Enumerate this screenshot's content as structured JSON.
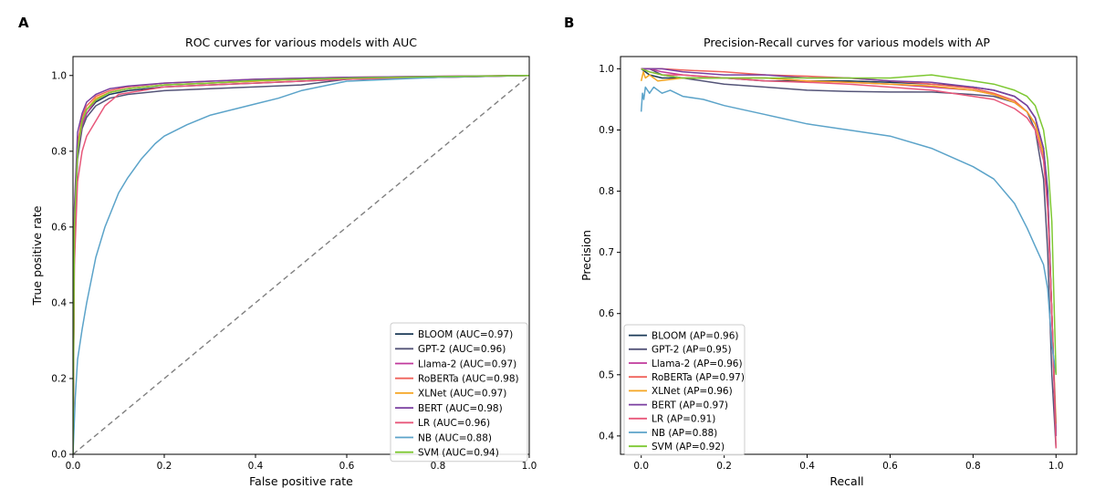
{
  "figure": {
    "panel_a_letter": "A",
    "panel_b_letter": "B"
  },
  "chart_data": [
    {
      "type": "line",
      "title": "ROC curves for various models with AUC",
      "xlabel": "False positive rate",
      "ylabel": "True positive rate",
      "xlim": [
        0.0,
        1.0
      ],
      "ylim": [
        0.0,
        1.05
      ],
      "xticks": [
        "0.0",
        "0.2",
        "0.4",
        "0.6",
        "0.8",
        "1.0"
      ],
      "yticks": [
        "0.0",
        "0.2",
        "0.4",
        "0.6",
        "0.8",
        "1.0"
      ],
      "legend_position": "lower-right",
      "grid": false,
      "baseline": {
        "style": "dashed",
        "color": "#808080",
        "x": [
          0,
          1
        ],
        "y": [
          0,
          1
        ]
      },
      "series": [
        {
          "name": "BLOOM (AUC=0.97)",
          "color": "#1b3a57",
          "x": [
            0,
            0.003,
            0.01,
            0.02,
            0.03,
            0.05,
            0.08,
            0.12,
            0.2,
            0.3,
            0.4,
            0.5,
            0.6,
            0.8,
            1.0
          ],
          "y": [
            0,
            0.6,
            0.8,
            0.87,
            0.9,
            0.93,
            0.95,
            0.96,
            0.97,
            0.975,
            0.98,
            0.985,
            0.99,
            0.995,
            1.0
          ]
        },
        {
          "name": "GPT-2 (AUC=0.96)",
          "color": "#545478",
          "x": [
            0,
            0.003,
            0.01,
            0.02,
            0.03,
            0.05,
            0.08,
            0.12,
            0.2,
            0.3,
            0.4,
            0.5,
            0.6,
            0.8,
            1.0
          ],
          "y": [
            0,
            0.55,
            0.78,
            0.86,
            0.89,
            0.92,
            0.94,
            0.95,
            0.96,
            0.965,
            0.97,
            0.975,
            0.99,
            0.995,
            1.0
          ]
        },
        {
          "name": "Llama-2 (AUC=0.97)",
          "color": "#c0399b",
          "x": [
            0,
            0.003,
            0.01,
            0.02,
            0.03,
            0.05,
            0.08,
            0.12,
            0.2,
            0.3,
            0.4,
            0.5,
            0.6,
            0.8,
            1.0
          ],
          "y": [
            0,
            0.58,
            0.8,
            0.87,
            0.9,
            0.935,
            0.955,
            0.965,
            0.975,
            0.98,
            0.985,
            0.99,
            0.993,
            0.997,
            1.0
          ]
        },
        {
          "name": "RoBERTa (AUC=0.98)",
          "color": "#f0625a",
          "x": [
            0,
            0.003,
            0.01,
            0.02,
            0.03,
            0.05,
            0.08,
            0.12,
            0.2,
            0.3,
            0.4,
            0.5,
            0.6,
            0.8,
            1.0
          ],
          "y": [
            0,
            0.62,
            0.82,
            0.89,
            0.92,
            0.945,
            0.96,
            0.97,
            0.98,
            0.985,
            0.99,
            0.993,
            0.995,
            0.998,
            1.0
          ]
        },
        {
          "name": "XLNet (AUC=0.97)",
          "color": "#f5a623",
          "x": [
            0,
            0.003,
            0.01,
            0.02,
            0.03,
            0.05,
            0.08,
            0.12,
            0.2,
            0.3,
            0.4,
            0.5,
            0.6,
            0.8,
            1.0
          ],
          "y": [
            0,
            0.6,
            0.81,
            0.88,
            0.91,
            0.94,
            0.955,
            0.965,
            0.975,
            0.98,
            0.985,
            0.99,
            0.993,
            0.997,
            1.0
          ]
        },
        {
          "name": "BERT (AUC=0.98)",
          "color": "#7a3fa0",
          "x": [
            0,
            0.003,
            0.01,
            0.02,
            0.03,
            0.05,
            0.08,
            0.12,
            0.2,
            0.3,
            0.4,
            0.5,
            0.6,
            0.8,
            1.0
          ],
          "y": [
            0,
            0.65,
            0.85,
            0.9,
            0.93,
            0.95,
            0.965,
            0.972,
            0.98,
            0.985,
            0.99,
            0.993,
            0.995,
            0.998,
            1.0
          ]
        },
        {
          "name": "LR (AUC=0.96)",
          "color": "#e8577a",
          "x": [
            0,
            0.003,
            0.01,
            0.02,
            0.03,
            0.05,
            0.07,
            0.1,
            0.15,
            0.2,
            0.3,
            0.4,
            0.6,
            0.8,
            1.0
          ],
          "y": [
            0,
            0.5,
            0.72,
            0.8,
            0.84,
            0.88,
            0.92,
            0.95,
            0.96,
            0.97,
            0.975,
            0.98,
            0.99,
            0.995,
            1.0
          ]
        },
        {
          "name": "NB (AUC=0.88)",
          "color": "#5ba3c9",
          "x": [
            0,
            0.005,
            0.01,
            0.02,
            0.03,
            0.05,
            0.07,
            0.1,
            0.12,
            0.15,
            0.18,
            0.2,
            0.25,
            0.3,
            0.35,
            0.4,
            0.45,
            0.5,
            0.6,
            0.7,
            0.8,
            0.9,
            1.0
          ],
          "y": [
            0,
            0.15,
            0.25,
            0.33,
            0.4,
            0.52,
            0.6,
            0.69,
            0.73,
            0.78,
            0.82,
            0.84,
            0.87,
            0.895,
            0.91,
            0.925,
            0.94,
            0.96,
            0.985,
            0.99,
            0.995,
            0.998,
            1.0
          ]
        },
        {
          "name": "SVM (AUC=0.94)",
          "color": "#7dc832",
          "x": [
            0,
            0.003,
            0.01,
            0.02,
            0.03,
            0.05,
            0.08,
            0.12,
            0.2,
            0.3,
            0.4,
            0.5,
            0.6,
            0.8,
            1.0
          ],
          "y": [
            0,
            0.6,
            0.8,
            0.88,
            0.91,
            0.935,
            0.955,
            0.965,
            0.975,
            0.98,
            0.987,
            0.99,
            0.993,
            0.997,
            1.0
          ]
        }
      ]
    },
    {
      "type": "line",
      "title": "Precision-Recall curves for various models with AP",
      "xlabel": "Recall",
      "ylabel": "Precision",
      "xlim": [
        -0.05,
        1.05
      ],
      "ylim": [
        0.37,
        1.02
      ],
      "xticks": [
        "0.0",
        "0.2",
        "0.4",
        "0.6",
        "0.8",
        "1.0"
      ],
      "yticks": [
        "0.4",
        "0.5",
        "0.6",
        "0.7",
        "0.8",
        "0.9",
        "1.0"
      ],
      "legend_position": "lower-left",
      "grid": false,
      "series": [
        {
          "name": "BLOOM (AP=0.96)",
          "color": "#1b3a57",
          "x": [
            0.0,
            0.02,
            0.05,
            0.1,
            0.2,
            0.3,
            0.4,
            0.5,
            0.6,
            0.7,
            0.8,
            0.85,
            0.9,
            0.93,
            0.95,
            0.97,
            0.98,
            0.99,
            1.0
          ],
          "y": [
            1.0,
            0.99,
            0.985,
            0.985,
            0.985,
            0.98,
            0.98,
            0.98,
            0.978,
            0.975,
            0.97,
            0.965,
            0.955,
            0.94,
            0.92,
            0.87,
            0.8,
            0.6,
            0.4
          ]
        },
        {
          "name": "GPT-2 (AP=0.95)",
          "color": "#545478",
          "x": [
            0.0,
            0.02,
            0.05,
            0.1,
            0.2,
            0.3,
            0.4,
            0.5,
            0.6,
            0.7,
            0.8,
            0.85,
            0.9,
            0.93,
            0.95,
            0.97,
            0.98,
            0.99,
            1.0
          ],
          "y": [
            1.0,
            1.0,
            0.99,
            0.985,
            0.975,
            0.97,
            0.965,
            0.963,
            0.962,
            0.962,
            0.958,
            0.955,
            0.945,
            0.93,
            0.9,
            0.82,
            0.7,
            0.5,
            0.38
          ]
        },
        {
          "name": "Llama-2 (AP=0.96)",
          "color": "#c0399b",
          "x": [
            0.0,
            0.02,
            0.05,
            0.1,
            0.2,
            0.3,
            0.4,
            0.5,
            0.6,
            0.7,
            0.8,
            0.85,
            0.9,
            0.93,
            0.95,
            0.97,
            0.98,
            0.99,
            1.0
          ],
          "y": [
            1.0,
            1.0,
            0.995,
            0.99,
            0.985,
            0.985,
            0.98,
            0.978,
            0.975,
            0.97,
            0.965,
            0.958,
            0.945,
            0.93,
            0.91,
            0.86,
            0.78,
            0.6,
            0.4
          ]
        },
        {
          "name": "RoBERTa (AP=0.97)",
          "color": "#f0625a",
          "x": [
            0.0,
            0.02,
            0.05,
            0.1,
            0.2,
            0.3,
            0.4,
            0.5,
            0.6,
            0.7,
            0.8,
            0.85,
            0.9,
            0.93,
            0.95,
            0.97,
            0.98,
            0.99,
            1.0
          ],
          "y": [
            1.0,
            1.0,
            1.0,
            0.998,
            0.995,
            0.99,
            0.988,
            0.985,
            0.98,
            0.975,
            0.968,
            0.96,
            0.948,
            0.93,
            0.91,
            0.86,
            0.78,
            0.6,
            0.4
          ]
        },
        {
          "name": "XLNet (AP=0.96)",
          "color": "#f5a623",
          "x": [
            0.0,
            0.005,
            0.01,
            0.02,
            0.04,
            0.1,
            0.2,
            0.3,
            0.4,
            0.5,
            0.6,
            0.7,
            0.8,
            0.85,
            0.9,
            0.93,
            0.95,
            0.97,
            0.98,
            0.99,
            1.0
          ],
          "y": [
            0.98,
            0.995,
            0.985,
            0.99,
            0.98,
            0.985,
            0.985,
            0.985,
            0.98,
            0.978,
            0.975,
            0.972,
            0.965,
            0.958,
            0.945,
            0.93,
            0.91,
            0.86,
            0.78,
            0.6,
            0.42
          ]
        },
        {
          "name": "BERT (AP=0.97)",
          "color": "#7a3fa0",
          "x": [
            0.0,
            0.02,
            0.05,
            0.1,
            0.2,
            0.3,
            0.4,
            0.5,
            0.6,
            0.7,
            0.8,
            0.85,
            0.9,
            0.93,
            0.95,
            0.97,
            0.98,
            0.99,
            1.0
          ],
          "y": [
            1.0,
            1.0,
            1.0,
            0.995,
            0.99,
            0.99,
            0.985,
            0.985,
            0.98,
            0.978,
            0.97,
            0.965,
            0.955,
            0.94,
            0.92,
            0.87,
            0.79,
            0.6,
            0.4
          ]
        },
        {
          "name": "LR (AP=0.91)",
          "color": "#e8577a",
          "x": [
            0.0,
            0.02,
            0.05,
            0.1,
            0.2,
            0.3,
            0.4,
            0.5,
            0.6,
            0.7,
            0.8,
            0.85,
            0.9,
            0.93,
            0.95,
            0.97,
            0.98,
            0.99,
            1.0
          ],
          "y": [
            1.0,
            0.995,
            0.99,
            0.99,
            0.985,
            0.98,
            0.978,
            0.975,
            0.97,
            0.965,
            0.955,
            0.95,
            0.935,
            0.92,
            0.9,
            0.85,
            0.77,
            0.6,
            0.38
          ]
        },
        {
          "name": "NB (AP=0.88)",
          "color": "#5ba3c9",
          "x": [
            0.0,
            0.003,
            0.006,
            0.01,
            0.02,
            0.03,
            0.05,
            0.07,
            0.1,
            0.15,
            0.2,
            0.3,
            0.4,
            0.5,
            0.6,
            0.7,
            0.8,
            0.85,
            0.9,
            0.93,
            0.95,
            0.97,
            0.98,
            0.99,
            1.0
          ],
          "y": [
            0.93,
            0.96,
            0.95,
            0.97,
            0.96,
            0.97,
            0.96,
            0.965,
            0.955,
            0.95,
            0.94,
            0.925,
            0.91,
            0.9,
            0.89,
            0.87,
            0.84,
            0.82,
            0.78,
            0.74,
            0.71,
            0.68,
            0.64,
            0.55,
            0.5
          ]
        },
        {
          "name": "SVM (AP=0.92)",
          "color": "#7dc832",
          "x": [
            0.0,
            0.02,
            0.05,
            0.1,
            0.2,
            0.3,
            0.4,
            0.5,
            0.6,
            0.7,
            0.8,
            0.85,
            0.9,
            0.93,
            0.95,
            0.97,
            0.98,
            0.99,
            1.0
          ],
          "y": [
            1.0,
            0.995,
            0.99,
            0.985,
            0.985,
            0.985,
            0.985,
            0.985,
            0.985,
            0.99,
            0.98,
            0.975,
            0.965,
            0.955,
            0.94,
            0.9,
            0.85,
            0.75,
            0.5
          ]
        }
      ]
    }
  ]
}
